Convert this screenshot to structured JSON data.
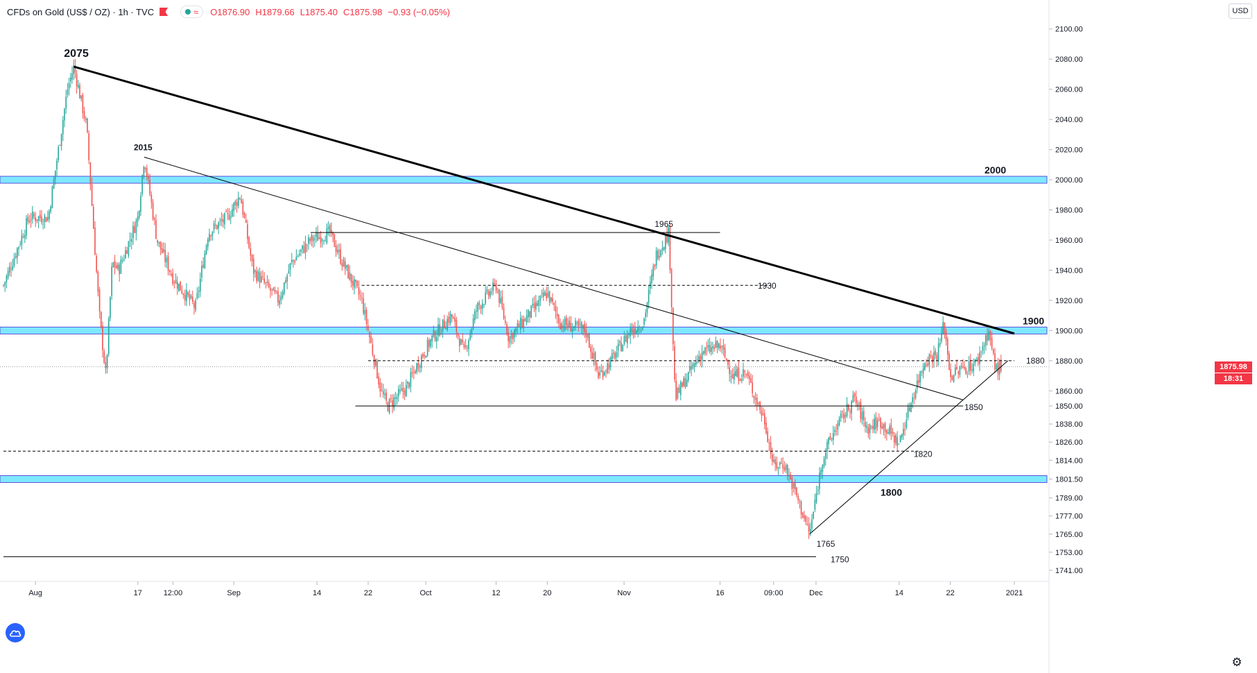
{
  "legend": {
    "symbol": "CFDs on Gold (US$ / OZ) · 1h · TVC",
    "open": "O1876.90",
    "high": "H1879.66",
    "low": "L1875.40",
    "close": "C1875.98",
    "change": "−0.93 (−0.05%)"
  },
  "currency_button": "USD",
  "last_price_label": "1875.98",
  "countdown_label": "18:31",
  "icons": [
    "flag-icon",
    "visibility-icon",
    "wave-icon",
    "tradingview-logo-icon",
    "gear-icon"
  ],
  "colors": {
    "up_candle": "#26a69a",
    "down_candle": "#ef5350",
    "zone_fill": "#7fe8ff",
    "zone_border": "#5b52d9",
    "price_tag": "#f23645",
    "trendline": "#000000"
  },
  "chart_data": {
    "type": "candlestick",
    "title": "CFDs on Gold (US$ / OZ) · 1h · TVC",
    "timeframe": "1h",
    "ylim": [
      1735,
      2110
    ],
    "y_ticks": [
      2100.0,
      2080.0,
      2060.0,
      2040.0,
      2020.0,
      2000.0,
      1980.0,
      1960.0,
      1940.0,
      1920.0,
      1900.0,
      1880.0,
      1860.0,
      1850.0,
      1838.0,
      1826.0,
      1814.0,
      1801.5,
      1789.0,
      1777.0,
      1765.0,
      1753.0,
      1741.0
    ],
    "x_ticks": [
      "Aug",
      "17",
      "12:00",
      "Sep",
      "14",
      "22",
      "Oct",
      "12",
      "20",
      "Nov",
      "16",
      "09:00",
      "Dec",
      "14",
      "22",
      "2021"
    ],
    "x_tick_dates": [
      "2020-08-01",
      "2020-08-17",
      "2020-08-22 12:00",
      "2020-09-01",
      "2020-09-14",
      "2020-09-22",
      "2020-10-01",
      "2020-10-12",
      "2020-10-20",
      "2020-11-01",
      "2020-11-16",
      "2020-11-24 09:00",
      "2020-12-01",
      "2020-12-14",
      "2020-12-22",
      "2021-01-01"
    ],
    "x_range": [
      "2020-07-27",
      "2021-01-01"
    ],
    "price_path": [
      {
        "t": "2020-07-27",
        "p": 1930
      },
      {
        "t": "2020-07-31",
        "p": 1975
      },
      {
        "t": "2020-08-03",
        "p": 1975
      },
      {
        "t": "2020-08-06",
        "p": 2060
      },
      {
        "t": "2020-08-07",
        "p": 2075
      },
      {
        "t": "2020-08-09",
        "p": 2035
      },
      {
        "t": "2020-08-11",
        "p": 1910
      },
      {
        "t": "2020-08-12",
        "p": 1870
      },
      {
        "t": "2020-08-13",
        "p": 1945
      },
      {
        "t": "2020-08-14",
        "p": 1940
      },
      {
        "t": "2020-08-17",
        "p": 1975
      },
      {
        "t": "2020-08-18",
        "p": 2015
      },
      {
        "t": "2020-08-20",
        "p": 1960
      },
      {
        "t": "2020-08-22 12:00",
        "p": 1935
      },
      {
        "t": "2020-08-26",
        "p": 1915
      },
      {
        "t": "2020-08-28",
        "p": 1965
      },
      {
        "t": "2020-08-31",
        "p": 1975
      },
      {
        "t": "2020-09-02",
        "p": 1990
      },
      {
        "t": "2020-09-04",
        "p": 1940
      },
      {
        "t": "2020-09-08",
        "p": 1920
      },
      {
        "t": "2020-09-10",
        "p": 1945
      },
      {
        "t": "2020-09-13",
        "p": 1960
      },
      {
        "t": "2020-09-16",
        "p": 1965
      },
      {
        "t": "2020-09-18",
        "p": 1945
      },
      {
        "t": "2020-09-21",
        "p": 1920
      },
      {
        "t": "2020-09-22",
        "p": 1900
      },
      {
        "t": "2020-09-24",
        "p": 1860
      },
      {
        "t": "2020-09-25",
        "p": 1850
      },
      {
        "t": "2020-09-28",
        "p": 1862
      },
      {
        "t": "2020-09-30",
        "p": 1880
      },
      {
        "t": "2020-10-02",
        "p": 1895
      },
      {
        "t": "2020-10-05",
        "p": 1910
      },
      {
        "t": "2020-10-07",
        "p": 1885
      },
      {
        "t": "2020-10-09",
        "p": 1915
      },
      {
        "t": "2020-10-12",
        "p": 1930
      },
      {
        "t": "2020-10-14",
        "p": 1895
      },
      {
        "t": "2020-10-16",
        "p": 1905
      },
      {
        "t": "2020-10-20",
        "p": 1925
      },
      {
        "t": "2020-10-22",
        "p": 1905
      },
      {
        "t": "2020-10-26",
        "p": 1900
      },
      {
        "t": "2020-10-28",
        "p": 1870
      },
      {
        "t": "2020-10-30",
        "p": 1880
      },
      {
        "t": "2020-11-02",
        "p": 1900
      },
      {
        "t": "2020-11-04",
        "p": 1905
      },
      {
        "t": "2020-11-06",
        "p": 1950
      },
      {
        "t": "2020-11-08",
        "p": 1965
      },
      {
        "t": "2020-11-09",
        "p": 1855
      },
      {
        "t": "2020-11-11",
        "p": 1870
      },
      {
        "t": "2020-11-13",
        "p": 1885
      },
      {
        "t": "2020-11-16",
        "p": 1890
      },
      {
        "t": "2020-11-18",
        "p": 1870
      },
      {
        "t": "2020-11-20",
        "p": 1872
      },
      {
        "t": "2020-11-23",
        "p": 1840
      },
      {
        "t": "2020-11-24 09:00",
        "p": 1810
      },
      {
        "t": "2020-11-26",
        "p": 1812
      },
      {
        "t": "2020-11-28",
        "p": 1790
      },
      {
        "t": "2020-11-30",
        "p": 1765
      },
      {
        "t": "2020-12-02",
        "p": 1815
      },
      {
        "t": "2020-12-04",
        "p": 1835
      },
      {
        "t": "2020-12-07",
        "p": 1855
      },
      {
        "t": "2020-12-09",
        "p": 1835
      },
      {
        "t": "2020-12-11",
        "p": 1840
      },
      {
        "t": "2020-12-14",
        "p": 1825
      },
      {
        "t": "2020-12-16",
        "p": 1855
      },
      {
        "t": "2020-12-18",
        "p": 1880
      },
      {
        "t": "2020-12-20",
        "p": 1885
      },
      {
        "t": "2020-12-21",
        "p": 1905
      },
      {
        "t": "2020-12-22",
        "p": 1870
      },
      {
        "t": "2020-12-24",
        "p": 1875
      },
      {
        "t": "2020-12-26",
        "p": 1878
      },
      {
        "t": "2020-12-28",
        "p": 1900
      },
      {
        "t": "2020-12-29",
        "p": 1875
      },
      {
        "t": "2020-12-30",
        "p": 1876
      }
    ],
    "zones": [
      {
        "price": 2000,
        "label": "2000"
      },
      {
        "price": 1900,
        "label": "1900"
      },
      {
        "price": 1801.5,
        "label": "1800"
      }
    ],
    "horizontal_levels": [
      {
        "price": 1965,
        "style": "solid",
        "from": "2020-09-13",
        "to": "2020-11-16",
        "label": "1965"
      },
      {
        "price": 1930,
        "style": "dashed",
        "from": "2020-09-21",
        "to": "2020-11-24",
        "label": "1930"
      },
      {
        "price": 1880,
        "style": "dashed",
        "from": "2020-09-22",
        "to": "2021-01-01",
        "label": "1880"
      },
      {
        "price": 1850,
        "style": "solid",
        "from": "2020-09-20",
        "to": "2020-12-24",
        "label": "1850"
      },
      {
        "price": 1820,
        "style": "dashed",
        "from": "2020-07-27",
        "to": "2020-12-17",
        "label": "1820"
      },
      {
        "price": 1750,
        "style": "solid",
        "from": "2020-07-27",
        "to": "2020-12-01",
        "label": "1750"
      }
    ],
    "trendlines": [
      {
        "from": {
          "t": "2020-08-07",
          "p": 2075
        },
        "to": {
          "t": "2021-01-01",
          "p": 1898
        },
        "weight": "thick"
      },
      {
        "from": {
          "t": "2020-08-18",
          "p": 2015
        },
        "to": {
          "t": "2020-12-24",
          "p": 1854
        },
        "weight": "thin"
      },
      {
        "from": {
          "t": "2020-11-30",
          "p": 1765
        },
        "to": {
          "t": "2020-12-31",
          "p": 1880
        },
        "weight": "thin"
      }
    ],
    "annotations": [
      {
        "text": "2075",
        "t": "2020-08-06",
        "p": 2075,
        "bold": true
      },
      {
        "text": "2015",
        "t": "2020-08-18",
        "p": 2015,
        "bold": true
      },
      {
        "text": "1765",
        "t": "2020-11-30",
        "p": 1765,
        "bold": false
      }
    ],
    "grid": false,
    "last_price": 1875.98
  }
}
